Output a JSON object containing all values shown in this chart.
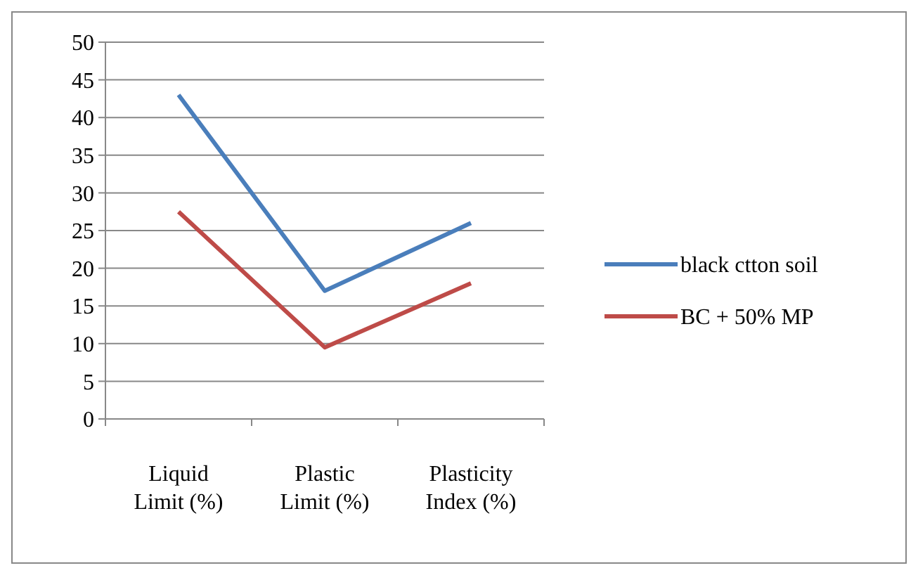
{
  "chart_data": {
    "type": "line",
    "categories": [
      "Liquid Limit (%)",
      "Plastic Limit (%)",
      "Plasticity Index (%)"
    ],
    "series": [
      {
        "name": "black ctton soil",
        "color": "#4a7ebb",
        "values": [
          43,
          17,
          26
        ]
      },
      {
        "name": "BC + 50% MP",
        "color": "#be4b48",
        "values": [
          27.5,
          9.5,
          18
        ]
      }
    ],
    "ylim": [
      0,
      50
    ],
    "yticks": [
      0,
      5,
      10,
      15,
      20,
      25,
      30,
      35,
      40,
      45,
      50
    ],
    "grid": "y",
    "legend": "right",
    "marker": "none",
    "line_style": "solid"
  }
}
